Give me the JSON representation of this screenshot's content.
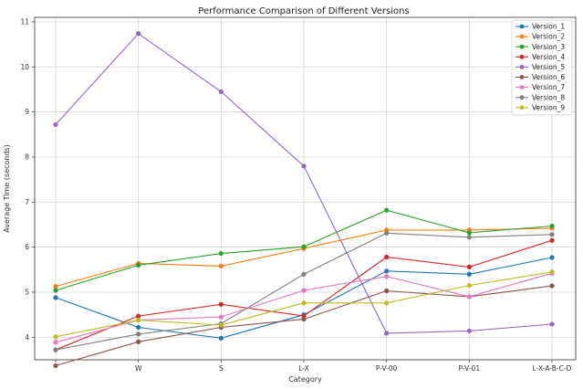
{
  "chart_data": {
    "type": "line",
    "title": "Performance Comparison of Different Versions",
    "xlabel": "Category",
    "ylabel": "Average Time (seconds)",
    "categories": [
      "",
      "W",
      "S",
      "L-X",
      "P-V-00",
      "P-V-01",
      "L-X-A-B-C-D"
    ],
    "ylim": [
      3.5,
      11.1
    ],
    "yticks": [
      4,
      5,
      6,
      7,
      8,
      9,
      10,
      11
    ],
    "grid": true,
    "legend_position": "top-right",
    "series": [
      {
        "name": "Version_1",
        "color": "#1f77b4",
        "values": [
          4.88,
          4.22,
          3.98,
          4.5,
          5.47,
          5.4,
          5.77
        ]
      },
      {
        "name": "Version_2",
        "color": "#ff7f0e",
        "values": [
          5.13,
          5.64,
          5.58,
          5.97,
          6.38,
          6.38,
          6.42
        ]
      },
      {
        "name": "Version_3",
        "color": "#2ca02c",
        "values": [
          5.04,
          5.6,
          5.86,
          6.01,
          6.82,
          6.32,
          6.47
        ]
      },
      {
        "name": "Version_4",
        "color": "#d62728",
        "values": [
          3.72,
          4.47,
          4.73,
          4.47,
          5.78,
          5.56,
          6.15
        ]
      },
      {
        "name": "Version_5",
        "color": "#9467bd",
        "values": [
          8.72,
          10.74,
          9.45,
          7.8,
          4.09,
          4.14,
          4.29
        ]
      },
      {
        "name": "Version_6",
        "color": "#8c564b",
        "values": [
          3.37,
          3.9,
          4.22,
          4.4,
          5.03,
          4.9,
          5.14
        ]
      },
      {
        "name": "Version_7",
        "color": "#e377c2",
        "values": [
          3.89,
          4.38,
          4.45,
          5.04,
          5.35,
          4.9,
          5.42
        ]
      },
      {
        "name": "Version_8",
        "color": "#7f7f7f",
        "values": [
          3.72,
          4.07,
          4.3,
          5.4,
          6.31,
          6.22,
          6.28
        ]
      },
      {
        "name": "Version_9",
        "color": "#bcbd22",
        "values": [
          4.01,
          4.38,
          4.27,
          4.76,
          4.76,
          5.15,
          5.45
        ]
      }
    ]
  }
}
